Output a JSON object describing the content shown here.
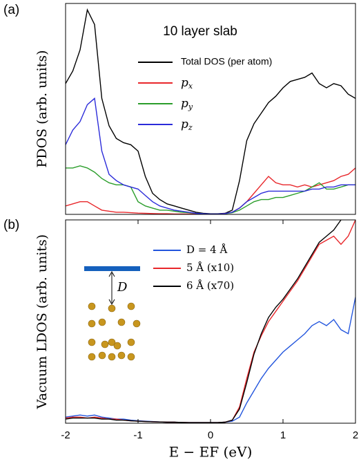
{
  "chart_data": [
    {
      "type": "line",
      "label": "(a)",
      "title": "10 layer slab",
      "ylabel": "PDOS (arb. units)",
      "x": [
        -2.0,
        -1.9,
        -1.8,
        -1.7,
        -1.6,
        -1.5,
        -1.4,
        -1.3,
        -1.2,
        -1.1,
        -1.0,
        -0.9,
        -0.8,
        -0.7,
        -0.6,
        -0.5,
        -0.4,
        -0.3,
        -0.2,
        -0.1,
        0.0,
        0.1,
        0.2,
        0.3,
        0.4,
        0.5,
        0.6,
        0.7,
        0.8,
        0.9,
        1.0,
        1.1,
        1.2,
        1.3,
        1.4,
        1.5,
        1.6,
        1.7,
        1.8,
        1.9,
        2.0
      ],
      "xlim": [
        -2,
        2
      ],
      "ylim": [
        0,
        100
      ],
      "series": [
        {
          "name": "Total DOS (per atom)",
          "color": "#000000",
          "values": [
            62,
            68,
            78,
            97,
            90,
            55,
            42,
            36,
            34,
            33,
            30,
            18,
            10,
            7,
            5,
            4,
            3,
            2,
            1,
            0.5,
            0.3,
            0.3,
            0.5,
            2,
            16,
            35,
            43,
            48,
            53,
            56,
            60,
            63,
            64,
            65,
            67,
            62,
            60,
            62,
            61,
            57,
            55
          ]
        },
        {
          "name": "px",
          "color": "#e8262a",
          "values": [
            4,
            5,
            6,
            6,
            4,
            2,
            1.5,
            1,
            1,
            0.8,
            0.6,
            0.5,
            0.4,
            0.3,
            0.3,
            0.2,
            0.2,
            0.2,
            0.2,
            0.2,
            0.2,
            0.2,
            0.4,
            1,
            3,
            6,
            10,
            14,
            18,
            15,
            14,
            14,
            13,
            14,
            13,
            14,
            15,
            16,
            18,
            19,
            22
          ]
        },
        {
          "name": "py",
          "color": "#2a9d2a",
          "values": [
            22,
            22,
            23,
            22,
            20,
            17,
            15,
            14,
            14,
            13,
            6,
            4,
            3,
            2,
            2,
            1.5,
            1,
            0.8,
            0.5,
            0.3,
            0.2,
            0.2,
            0.3,
            0.8,
            2,
            4,
            6,
            7,
            7,
            8,
            8,
            9,
            10,
            11,
            13,
            15,
            12,
            12,
            13,
            14,
            14
          ]
        },
        {
          "name": "pz",
          "color": "#2b2bd9",
          "values": [
            33,
            40,
            44,
            52,
            55,
            30,
            19,
            16,
            14,
            13,
            12,
            9,
            6,
            4,
            3,
            2,
            1.5,
            1,
            0.5,
            0.3,
            0.2,
            0.2,
            0.4,
            1,
            3,
            6,
            8,
            10,
            11,
            11,
            11,
            11,
            11,
            11,
            12,
            12,
            13,
            13,
            14,
            14,
            14
          ]
        }
      ]
    },
    {
      "type": "line",
      "label": "(b)",
      "ylabel": "Vacuum LDOS (arb. units)",
      "xlabel": "E − EF (eV)",
      "inset_label": "D",
      "x": [
        -2.0,
        -1.9,
        -1.8,
        -1.7,
        -1.6,
        -1.5,
        -1.4,
        -1.3,
        -1.2,
        -1.1,
        -1.0,
        -0.9,
        -0.8,
        -0.7,
        -0.6,
        -0.5,
        -0.4,
        -0.3,
        -0.2,
        -0.1,
        0.0,
        0.1,
        0.2,
        0.3,
        0.4,
        0.5,
        0.6,
        0.7,
        0.8,
        0.9,
        1.0,
        1.1,
        1.2,
        1.3,
        1.4,
        1.5,
        1.6,
        1.7,
        1.8,
        1.9,
        2.0
      ],
      "xlim": [
        -2,
        2
      ],
      "ylim": [
        0,
        100
      ],
      "xticks": [
        -2,
        -1,
        0,
        1,
        2
      ],
      "series": [
        {
          "name": "D = 4 Å",
          "color": "#2255dd",
          "values": [
            3,
            3.5,
            4,
            3.5,
            4,
            3,
            2.5,
            2,
            2,
            1.5,
            1.2,
            1,
            0.8,
            0.6,
            0.5,
            0.5,
            0.4,
            0.3,
            0.3,
            0.3,
            0.3,
            0.3,
            0.5,
            1,
            3,
            10,
            16,
            22,
            27,
            31,
            35,
            38,
            41,
            44,
            48,
            50,
            48,
            51,
            46,
            44,
            62
          ]
        },
        {
          "name": "5 Å  (x10)",
          "color": "#e8262a",
          "values": [
            2.5,
            3,
            3,
            2.5,
            3,
            2.5,
            2,
            2,
            1.5,
            1.2,
            1,
            0.8,
            0.7,
            0.6,
            0.5,
            0.5,
            0.4,
            0.3,
            0.3,
            0.3,
            0.3,
            0.3,
            0.5,
            1.5,
            8,
            22,
            35,
            43,
            50,
            55,
            60,
            65,
            70,
            76,
            82,
            88,
            90,
            92,
            88,
            92,
            100
          ]
        },
        {
          "name": "6 Å  (x70)",
          "color": "#000000",
          "values": [
            2,
            2.5,
            2.5,
            2.5,
            2.5,
            2,
            2,
            1.5,
            1.5,
            1.2,
            1,
            0.8,
            0.7,
            0.6,
            0.5,
            0.5,
            0.4,
            0.3,
            0.3,
            0.3,
            0.3,
            0.3,
            0.5,
            1.5,
            7,
            20,
            34,
            44,
            52,
            57,
            61,
            66,
            71,
            77,
            83,
            89,
            92,
            95,
            100,
            null,
            null
          ]
        }
      ]
    }
  ]
}
